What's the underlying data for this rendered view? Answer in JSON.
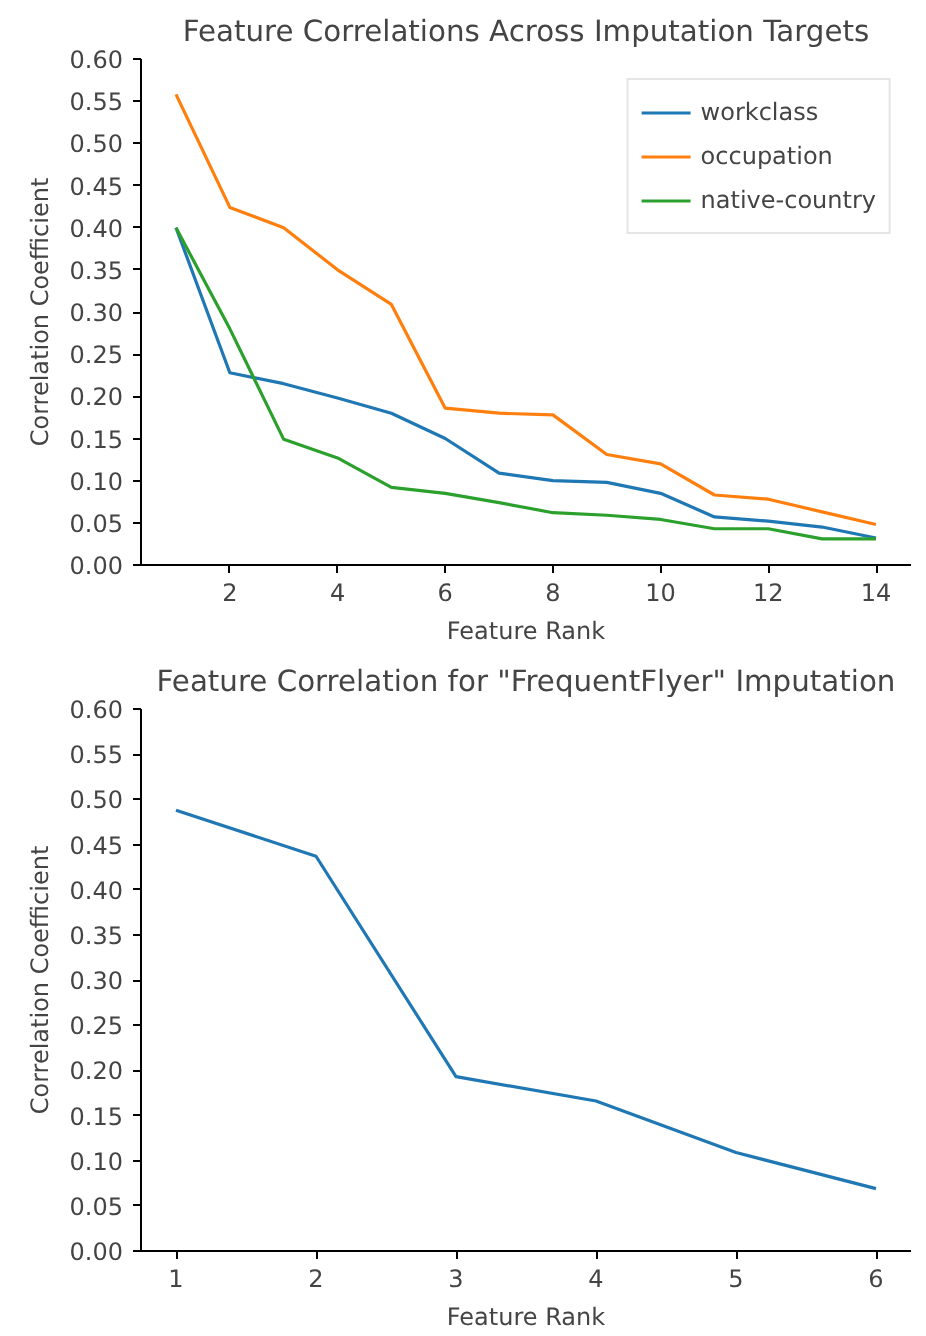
{
  "chart_data": [
    {
      "type": "line",
      "title": "Feature Correlations Across Imputation Targets",
      "xlabel": "Feature Rank",
      "ylabel": "Correlation Coefficient",
      "x": [
        1,
        2,
        3,
        4,
        5,
        6,
        7,
        8,
        9,
        10,
        11,
        12,
        13,
        14
      ],
      "series": [
        {
          "name": "workclass",
          "color": "#1f77b4",
          "values": [
            0.4,
            0.228,
            0.215,
            0.198,
            0.18,
            0.15,
            0.109,
            0.1,
            0.098,
            0.085,
            0.057,
            0.052,
            0.045,
            0.032
          ]
        },
        {
          "name": "occupation",
          "color": "#ff7f0e",
          "values": [
            0.558,
            0.424,
            0.4,
            0.35,
            0.309,
            0.186,
            0.18,
            0.178,
            0.131,
            0.12,
            0.083,
            0.078,
            0.063,
            0.048
          ]
        },
        {
          "name": "native-country",
          "color": "#2ca02c",
          "values": [
            0.4,
            0.28,
            0.149,
            0.127,
            0.092,
            0.085,
            0.074,
            0.062,
            0.059,
            0.054,
            0.043,
            0.043,
            0.031,
            0.031
          ]
        }
      ],
      "xlim": [
        0.35,
        14.65
      ],
      "ylim": [
        0,
        0.6
      ],
      "xticks": [
        2,
        4,
        6,
        8,
        10,
        12,
        14
      ],
      "yticks": [
        {
          "value": 0,
          "label": "0.00"
        },
        {
          "value": 0.05,
          "label": "0.05"
        },
        {
          "value": 0.1,
          "label": "0.10"
        },
        {
          "value": 0.15,
          "label": "0.15"
        },
        {
          "value": 0.2,
          "label": "0.20"
        },
        {
          "value": 0.25,
          "label": "0.25"
        },
        {
          "value": 0.3,
          "label": "0.30"
        },
        {
          "value": 0.35,
          "label": "0.35"
        },
        {
          "value": 0.4,
          "label": "0.40"
        },
        {
          "value": 0.45,
          "label": "0.45"
        },
        {
          "value": 0.5,
          "label": "0.50"
        },
        {
          "value": 0.55,
          "label": "0.55"
        },
        {
          "value": 0.6,
          "label": "0.60"
        }
      ],
      "legend": "top right",
      "grid": false
    },
    {
      "type": "line",
      "title": "Feature Correlation for \"FrequentFlyer\" Imputation",
      "xlabel": "Feature Rank",
      "ylabel": "Correlation Coefficient",
      "x": [
        1,
        2,
        3,
        4,
        5,
        6
      ],
      "series": [
        {
          "color": "#1f77b4",
          "values": [
            0.488,
            0.437,
            0.193,
            0.166,
            0.109,
            0.069
          ]
        }
      ],
      "xlim": [
        0.75,
        6.25
      ],
      "ylim": [
        0,
        0.6
      ],
      "xticks": [
        1,
        2,
        3,
        4,
        5,
        6
      ],
      "yticks": [
        {
          "value": 0,
          "label": "0.00"
        },
        {
          "value": 0.05,
          "label": "0.05"
        },
        {
          "value": 0.1,
          "label": "0.10"
        },
        {
          "value": 0.15,
          "label": "0.15"
        },
        {
          "value": 0.2,
          "label": "0.20"
        },
        {
          "value": 0.25,
          "label": "0.25"
        },
        {
          "value": 0.3,
          "label": "0.30"
        },
        {
          "value": 0.35,
          "label": "0.35"
        },
        {
          "value": 0.4,
          "label": "0.40"
        },
        {
          "value": 0.45,
          "label": "0.45"
        },
        {
          "value": 0.5,
          "label": "0.50"
        },
        {
          "value": 0.55,
          "label": "0.55"
        },
        {
          "value": 0.6,
          "label": "0.60"
        }
      ],
      "grid": false
    }
  ]
}
